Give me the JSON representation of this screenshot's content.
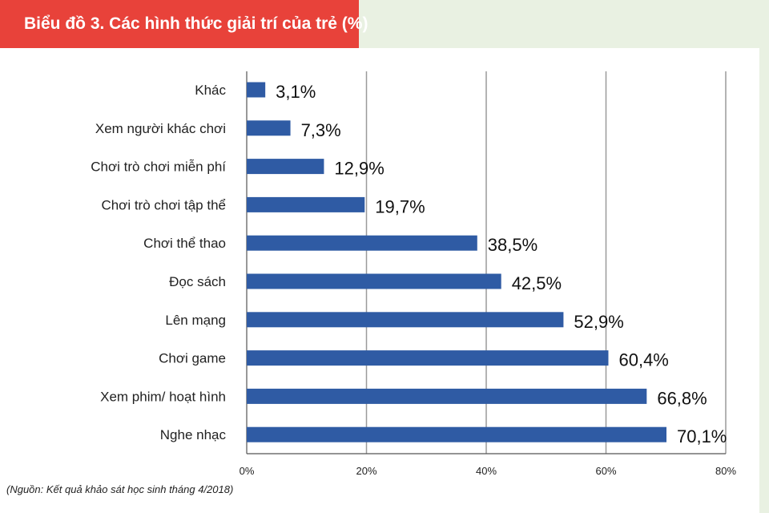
{
  "title": "Biểu đồ 3. Các hình thức giải trí của trẻ (%)",
  "source": "(Nguồn: Kết quả khảo sát học sinh tháng 4/2018)",
  "colors": {
    "bar": "#2f5ba4",
    "banner": "#e8423a",
    "grid": "#9a9a9a"
  },
  "chart_data": {
    "type": "bar",
    "orientation": "horizontal",
    "title": "Biểu đồ 3. Các hình thức giải trí của trẻ (%)",
    "categories": [
      "Khác",
      "Xem người khác chơi",
      "Chơi trò chơi miễn phí",
      "Chơi trò chơi tập thể",
      "Chơi thể thao",
      "Đọc sách",
      "Lên mạng",
      "Chơi game",
      "Xem phim/ hoạt hình",
      "Nghe nhạc"
    ],
    "values": [
      3.1,
      7.3,
      12.9,
      19.7,
      38.5,
      42.5,
      52.9,
      60.4,
      66.8,
      70.1
    ],
    "data_labels": [
      "3,1%",
      "7,3%",
      "12,9%",
      "19,7%",
      "38,5%",
      "42,5%",
      "52,9%",
      "60,4%",
      "66,8%",
      "70,1%"
    ],
    "xlim": [
      0,
      80
    ],
    "xticks": [
      0,
      20,
      40,
      60,
      80
    ],
    "xtick_labels": [
      "0%",
      "20%",
      "40%",
      "60%",
      "80%"
    ],
    "grid": true,
    "xlabel": "",
    "ylabel": ""
  }
}
